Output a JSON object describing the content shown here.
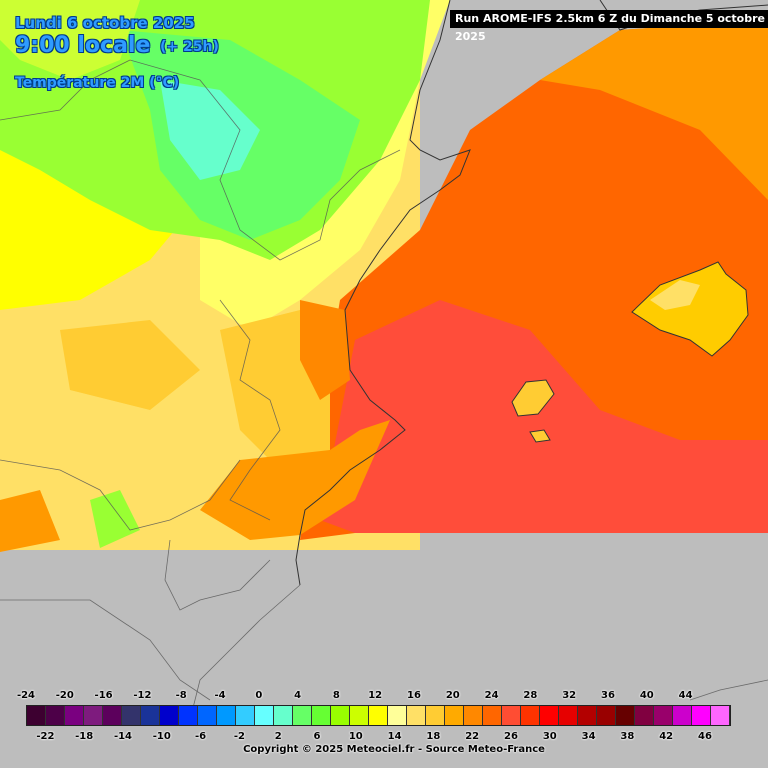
{
  "header": {
    "date": "Lundi 6 octobre 2025",
    "time": "9:00 locale",
    "lead": "(+ 25h)",
    "parameter": "Température 2M (°C)",
    "run": "Run AROME-IFS 2.5km 6 Z du Dimanche 5 octobre 2025"
  },
  "legend": {
    "top_labels": [
      "-24",
      "-20",
      "-16",
      "-12",
      "-8",
      "-4",
      "0",
      "4",
      "8",
      "12",
      "16",
      "20",
      "24",
      "28",
      "32",
      "36",
      "40",
      "44"
    ],
    "bottom_labels": [
      "-22",
      "-18",
      "-14",
      "-10",
      "-6",
      "-2",
      "2",
      "6",
      "10",
      "14",
      "18",
      "22",
      "26",
      "30",
      "34",
      "38",
      "42",
      "46"
    ],
    "colors": [
      "#3d0030",
      "#4d0048",
      "#7a0080",
      "#7e1b7e",
      "#5c005c",
      "#33336b",
      "#1a3399",
      "#0000cc",
      "#0033ff",
      "#0066ff",
      "#0099ff",
      "#33ccff",
      "#66ffff",
      "#66ffcc",
      "#66ff66",
      "#66ff33",
      "#99ff00",
      "#ccff00",
      "#ffff00",
      "#ffff99",
      "#ffe066",
      "#ffcc33",
      "#ffaa00",
      "#ff8800",
      "#ff6600",
      "#ff4d33",
      "#ff3300",
      "#ff0000",
      "#e60000",
      "#b30000",
      "#990000",
      "#660000",
      "#800040",
      "#99006b",
      "#cc00cc",
      "#ff00ff",
      "#ff66ff"
    ]
  },
  "copyright": "Copyright © 2025 Meteociel.fr - Source Meteo-France"
}
